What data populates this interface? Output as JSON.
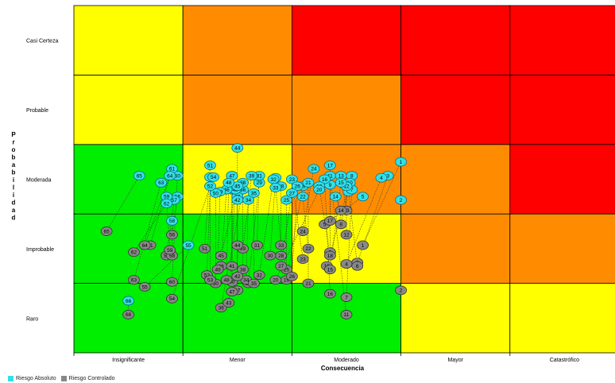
{
  "chart_data": {
    "type": "scatter",
    "title": "",
    "xlabel": "Consecuencia",
    "ylabel": "Probabilidad",
    "x_categories": [
      "Insignificante",
      "Menor",
      "Moderado",
      "Mayor",
      "Catastrófico"
    ],
    "y_categories": [
      "Raro",
      "Improbable",
      "Moderada",
      "Probable",
      "Casi Certeza"
    ],
    "matrix_colors": [
      [
        "#00ee00",
        "#00ee00",
        "#00ee00",
        "#ffff00",
        "#ffff00"
      ],
      [
        "#00ee00",
        "#00ee00",
        "#ffff00",
        "#ff8c00",
        "#ff8c00"
      ],
      [
        "#00ee00",
        "#ffff00",
        "#ff8c00",
        "#ff8c00",
        "#ff0000"
      ],
      [
        "#ffff00",
        "#ff8c00",
        "#ff8c00",
        "#ff0000",
        "#ff0000"
      ],
      [
        "#ffff00",
        "#ff8c00",
        "#ff0000",
        "#ff0000",
        "#ff0000"
      ]
    ],
    "grid": true,
    "legend_position": "bottom-left",
    "series": [
      {
        "name": "Riesgo Absoluto",
        "color": "#33e0e8"
      },
      {
        "name": "Riesgo Controlado",
        "color": "#888888"
      }
    ],
    "risks": [
      {
        "id": "1",
        "abs": [
          3.5,
          3.25
        ],
        "ctrl": [
          3.15,
          2.05
        ]
      },
      {
        "id": "2",
        "abs": [
          3.5,
          2.7
        ],
        "ctrl": [
          3.5,
          1.4
        ]
      },
      {
        "id": "3",
        "abs": [
          3.38,
          3.05
        ],
        "ctrl": [
          3.1,
          1.8
        ]
      },
      {
        "id": "4",
        "abs": [
          3.32,
          3.02
        ],
        "ctrl": [
          3.0,
          1.78
        ]
      },
      {
        "id": "5",
        "abs": [
          3.15,
          2.75
        ],
        "ctrl": [
          2.8,
          2.35
        ]
      },
      {
        "id": "6",
        "abs": [
          3.02,
          2.82
        ],
        "ctrl": [
          3.1,
          1.75
        ]
      },
      {
        "id": "7",
        "abs": [
          3.05,
          2.85
        ],
        "ctrl": [
          3.0,
          1.3
        ]
      },
      {
        "id": "8",
        "abs": [
          3.05,
          3.05
        ],
        "ctrl": [
          2.95,
          2.35
        ]
      },
      {
        "id": "9",
        "abs": [
          2.85,
          2.92
        ],
        "ctrl": [
          2.85,
          1.95
        ]
      },
      {
        "id": "10",
        "abs": [
          3.03,
          2.95
        ],
        "ctrl": [
          2.82,
          1.75
        ]
      },
      {
        "id": "11",
        "abs": [
          2.85,
          3.05
        ],
        "ctrl": [
          3.0,
          1.05
        ]
      },
      {
        "id": "12",
        "abs": [
          3.0,
          2.9
        ],
        "ctrl": [
          3.0,
          2.2
        ]
      },
      {
        "id": "13",
        "abs": [
          2.95,
          3.05
        ],
        "ctrl": [
          3.0,
          2.55
        ]
      },
      {
        "id": "14",
        "abs": [
          2.9,
          2.75
        ],
        "ctrl": [
          2.95,
          2.55
        ]
      },
      {
        "id": "15",
        "abs": [
          2.95,
          2.95
        ],
        "ctrl": [
          2.85,
          1.7
        ]
      },
      {
        "id": "16",
        "abs": [
          2.8,
          3.0
        ],
        "ctrl": [
          2.85,
          1.35
        ]
      },
      {
        "id": "17",
        "abs": [
          2.85,
          3.2
        ],
        "ctrl": [
          2.85,
          2.4
        ]
      },
      {
        "id": "18",
        "abs": [
          2.75,
          2.9
        ],
        "ctrl": [
          2.85,
          1.9
        ]
      },
      {
        "id": "19",
        "abs": [
          2.6,
          2.9
        ],
        "ctrl": [
          2.45,
          1.55
        ]
      },
      {
        "id": "20",
        "abs": [
          2.75,
          2.85
        ],
        "ctrl": [
          2.35,
          1.55
        ]
      },
      {
        "id": "21",
        "abs": [
          2.65,
          2.95
        ],
        "ctrl": [
          2.65,
          1.5
        ]
      },
      {
        "id": "22",
        "abs": [
          2.6,
          2.75
        ],
        "ctrl": [
          2.65,
          2.0
        ]
      },
      {
        "id": "23",
        "abs": [
          2.5,
          3.0
        ],
        "ctrl": [
          2.6,
          1.85
        ]
      },
      {
        "id": "24",
        "abs": [
          2.7,
          3.15
        ],
        "ctrl": [
          2.6,
          2.25
        ]
      },
      {
        "id": "25",
        "abs": [
          2.45,
          2.7
        ],
        "ctrl": [
          2.45,
          1.7
        ]
      },
      {
        "id": "26",
        "abs": [
          2.55,
          2.9
        ],
        "ctrl": [
          2.5,
          1.6
        ]
      },
      {
        "id": "27",
        "abs": [
          2.5,
          2.8
        ],
        "ctrl": [
          2.4,
          1.75
        ]
      },
      {
        "id": "28",
        "abs": [
          2.4,
          2.9
        ],
        "ctrl": [
          2.4,
          1.9
        ]
      },
      {
        "id": "29",
        "abs": [
          2.2,
          2.95
        ],
        "ctrl": [
          2.1,
          1.5
        ]
      },
      {
        "id": "30",
        "abs": [
          2.35,
          3.02
        ],
        "ctrl": [
          2.3,
          1.9
        ]
      },
      {
        "id": "31",
        "abs": [
          2.2,
          3.05
        ],
        "ctrl": [
          2.18,
          2.05
        ]
      },
      {
        "id": "32",
        "abs": [
          2.33,
          3.0
        ],
        "ctrl": [
          2.2,
          1.62
        ]
      },
      {
        "id": "33",
        "abs": [
          2.35,
          2.88
        ],
        "ctrl": [
          2.4,
          2.05
        ]
      },
      {
        "id": "34",
        "abs": [
          2.1,
          2.7
        ],
        "ctrl": [
          2.08,
          1.55
        ]
      },
      {
        "id": "35",
        "abs": [
          2.15,
          2.8
        ],
        "ctrl": [
          2.15,
          1.5
        ]
      },
      {
        "id": "36",
        "abs": [
          2.05,
          2.85
        ],
        "ctrl": [
          1.85,
          1.15
        ]
      },
      {
        "id": "37",
        "abs": [
          2.0,
          2.75
        ],
        "ctrl": [
          2.0,
          1.4
        ]
      },
      {
        "id": "38",
        "abs": [
          2.05,
          2.95
        ],
        "ctrl": [
          2.05,
          1.7
        ]
      },
      {
        "id": "39",
        "abs": [
          2.13,
          3.05
        ],
        "ctrl": [
          2.05,
          2.0
        ]
      },
      {
        "id": "40",
        "abs": [
          1.95,
          2.85
        ],
        "ctrl": [
          1.95,
          1.52
        ]
      },
      {
        "id": "41",
        "abs": [
          1.95,
          3.05
        ],
        "ctrl": [
          1.95,
          1.75
        ]
      },
      {
        "id": "42",
        "abs": [
          2.0,
          2.7
        ],
        "ctrl": [
          2.0,
          1.6
        ]
      },
      {
        "id": "43",
        "abs": [
          1.98,
          2.85
        ],
        "ctrl": [
          1.92,
          1.22
        ]
      },
      {
        "id": "44",
        "abs": [
          2.0,
          3.45
        ],
        "ctrl": [
          2.0,
          2.05
        ]
      },
      {
        "id": "45",
        "abs": [
          2.0,
          2.9
        ],
        "ctrl": [
          1.85,
          1.9
        ]
      },
      {
        "id": "46",
        "abs": [
          1.9,
          2.85
        ],
        "ctrl": [
          1.85,
          1.75
        ]
      },
      {
        "id": "47",
        "abs": [
          1.95,
          3.05
        ],
        "ctrl": [
          1.95,
          1.38
        ]
      },
      {
        "id": "48",
        "abs": [
          1.92,
          2.95
        ],
        "ctrl": [
          1.9,
          1.55
        ]
      },
      {
        "id": "49",
        "abs": [
          1.84,
          2.82
        ],
        "ctrl": [
          1.82,
          1.7
        ]
      },
      {
        "id": "50",
        "abs": [
          1.8,
          2.8
        ],
        "ctrl": [
          1.8,
          1.5
        ]
      },
      {
        "id": "51",
        "abs": [
          1.75,
          3.2
        ],
        "ctrl": [
          1.7,
          2.0
        ]
      },
      {
        "id": "52",
        "abs": [
          1.75,
          2.9
        ],
        "ctrl": [
          1.72,
          1.62
        ]
      },
      {
        "id": "53",
        "abs": [
          1.75,
          3.03
        ],
        "ctrl": [
          1.75,
          1.55
        ]
      },
      {
        "id": "54",
        "abs": [
          1.78,
          3.03
        ],
        "ctrl": [
          1.4,
          1.28
        ]
      },
      {
        "id": "55",
        "abs": [
          1.55,
          2.05
        ],
        "ctrl": [
          1.15,
          1.45
        ]
      },
      {
        "id": "56",
        "abs": [
          1.45,
          2.75
        ],
        "ctrl": [
          1.4,
          2.2
        ]
      },
      {
        "id": "57",
        "abs": [
          1.42,
          2.7
        ],
        "ctrl": [
          1.35,
          1.9
        ]
      },
      {
        "id": "58",
        "abs": [
          1.4,
          2.4
        ],
        "ctrl": [
          1.4,
          1.9
        ]
      },
      {
        "id": "59",
        "abs": [
          1.35,
          2.75
        ],
        "ctrl": [
          1.38,
          1.98
        ]
      },
      {
        "id": "60",
        "abs": [
          1.45,
          3.05
        ],
        "ctrl": [
          1.4,
          1.52
        ]
      },
      {
        "id": "61",
        "abs": [
          1.4,
          3.15
        ],
        "ctrl": [
          1.2,
          2.05
        ]
      },
      {
        "id": "62",
        "abs": [
          1.35,
          2.65
        ],
        "ctrl": [
          1.05,
          1.95
        ]
      },
      {
        "id": "63",
        "abs": [
          1.3,
          2.95
        ],
        "ctrl": [
          1.05,
          1.55
        ]
      },
      {
        "id": "64",
        "abs": [
          1.38,
          3.05
        ],
        "ctrl": [
          1.15,
          2.05
        ]
      },
      {
        "id": "65",
        "abs": [
          1.1,
          3.05
        ],
        "ctrl": [
          0.8,
          2.25
        ]
      },
      {
        "id": "66",
        "abs": [
          1.0,
          1.25
        ],
        "ctrl": [
          1.0,
          1.05
        ]
      }
    ]
  }
}
